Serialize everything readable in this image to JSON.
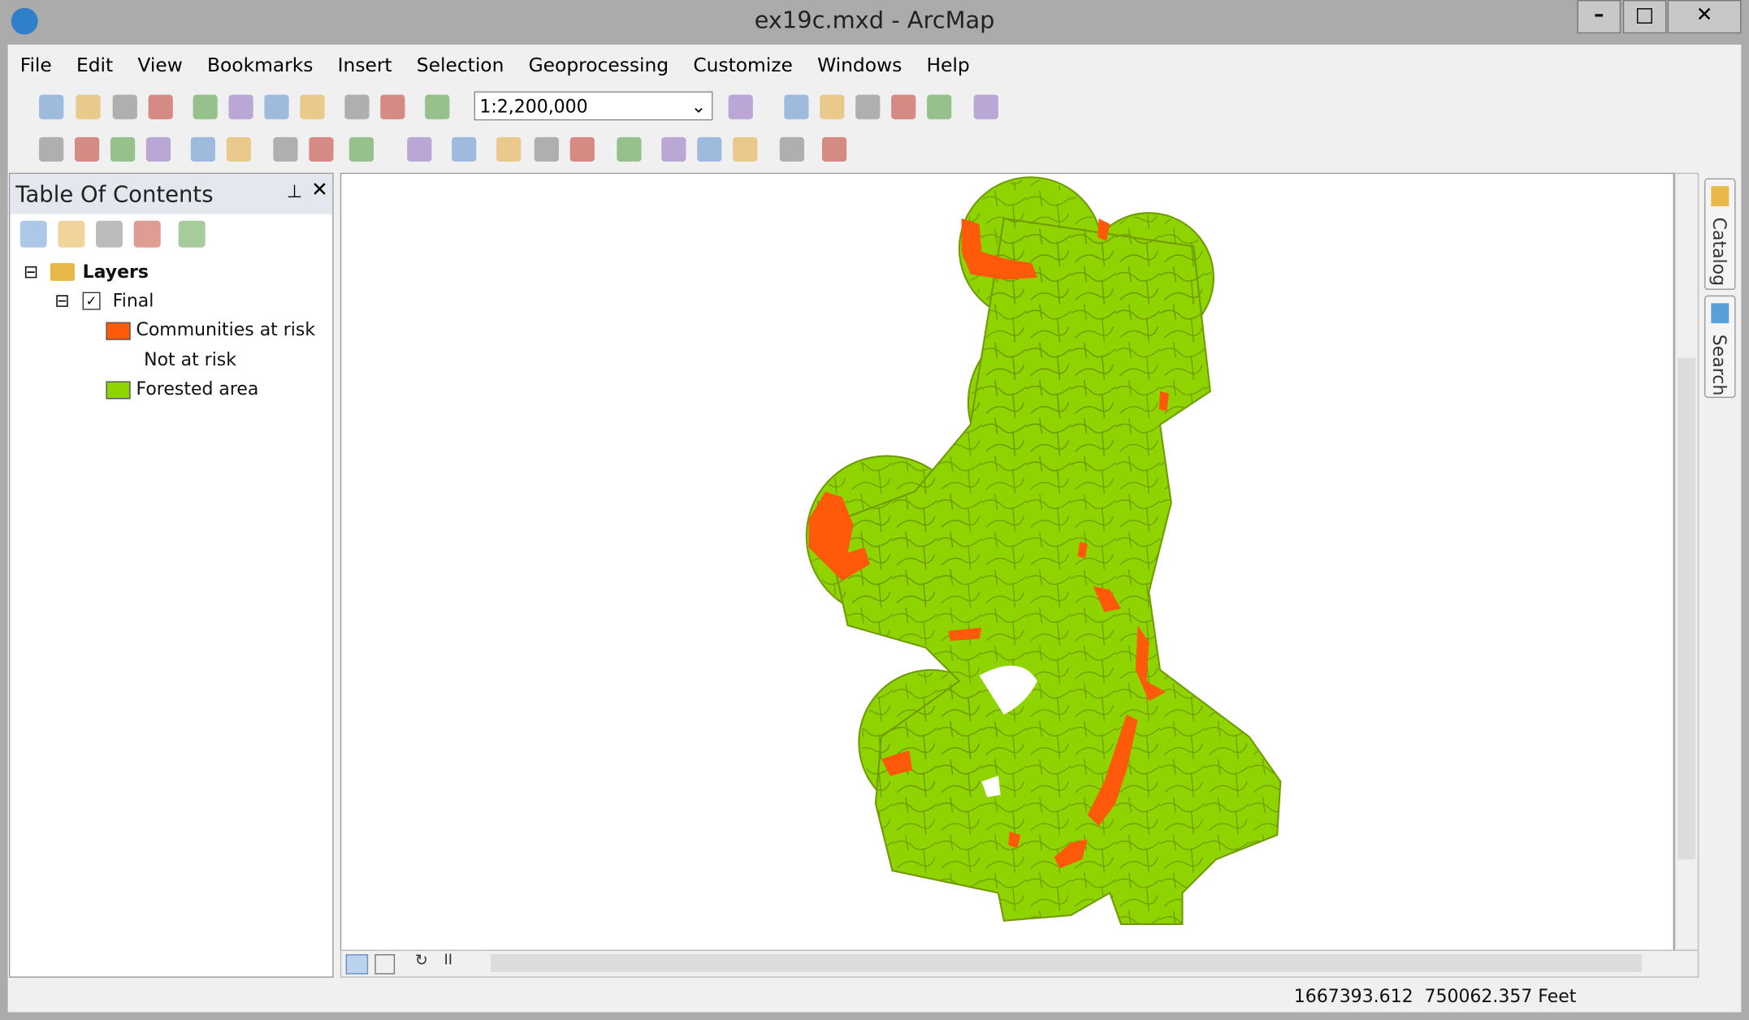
{
  "window": {
    "title": "ex19c.mxd - ArcMap"
  },
  "menu": [
    "File",
    "Edit",
    "View",
    "Bookmarks",
    "Insert",
    "Selection",
    "Geoprocessing",
    "Customize",
    "Windows",
    "Help"
  ],
  "toolbar": {
    "scale": "1:2,200,000"
  },
  "toc": {
    "title": "Table Of Contents",
    "root": "Layers",
    "layer": "Final",
    "legend": [
      {
        "label": "Communities at risk",
        "color": "#ff5a0a"
      },
      {
        "label": "Not at risk",
        "color": null
      },
      {
        "label": "Forested area",
        "color": "#8fd400"
      }
    ]
  },
  "side_tabs": [
    "Catalog",
    "Search"
  ],
  "status": {
    "coordinates": "1667393.612  750062.357 Feet"
  }
}
